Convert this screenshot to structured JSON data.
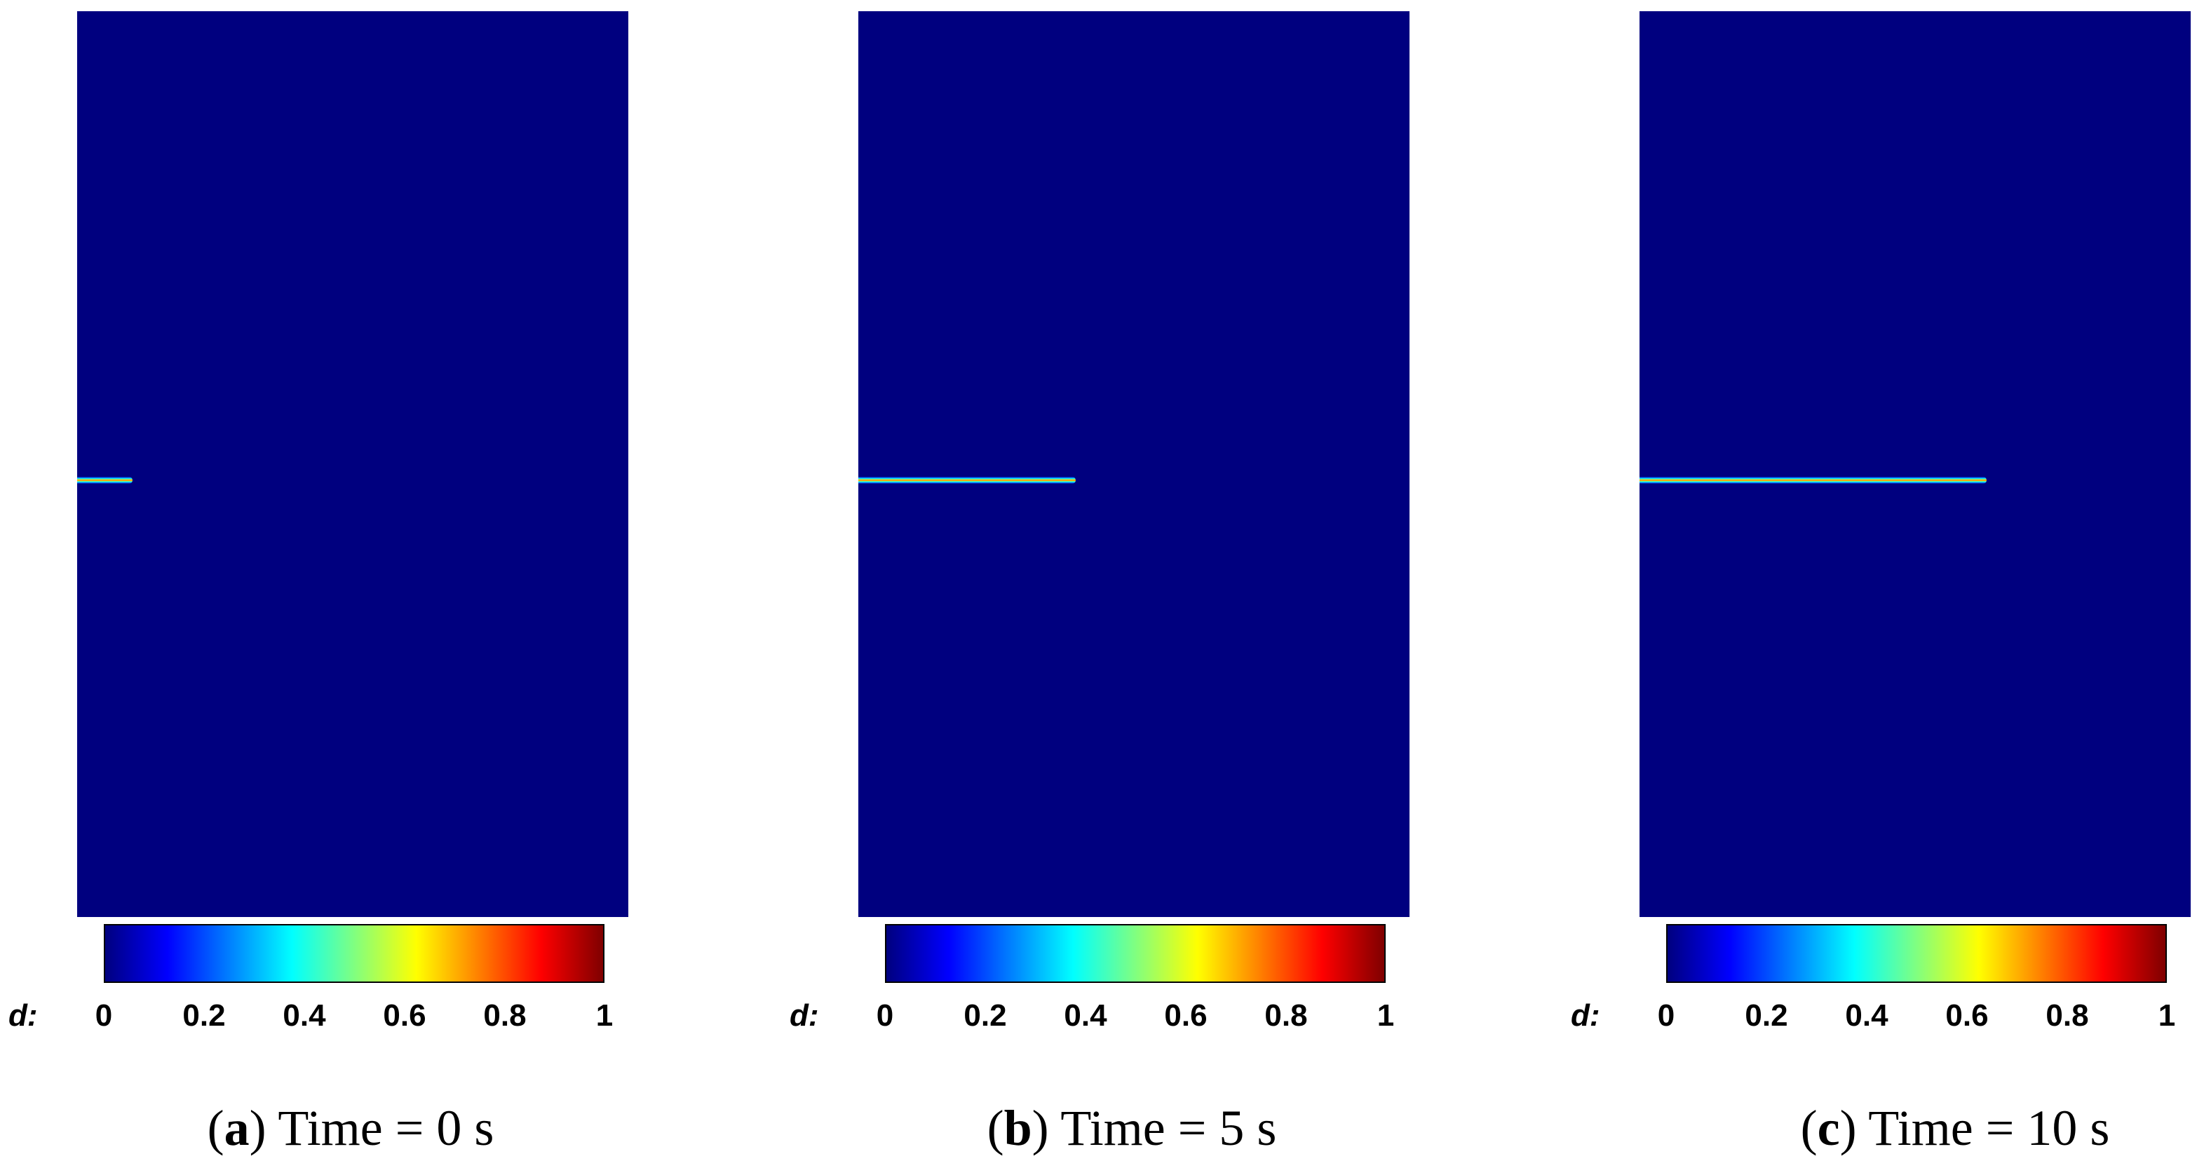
{
  "colorbar": {
    "variable_label": "d:",
    "ticks": [
      "0",
      "0.2",
      "0.4",
      "0.6",
      "0.8",
      "1"
    ],
    "colormap": [
      "#00007f",
      "#0000ff",
      "#0080ff",
      "#00ffff",
      "#80ff80",
      "#ffff00",
      "#ff8000",
      "#ff0000",
      "#7f0000"
    ]
  },
  "field_background_color": "#00007f",
  "panels": [
    {
      "letter": "a",
      "caption": "Time = 0 s",
      "crack_length_fraction": 0.1
    },
    {
      "letter": "b",
      "caption": "Time = 5 s",
      "crack_length_fraction": 0.395
    },
    {
      "letter": "c",
      "caption": "Time = 10 s",
      "crack_length_fraction": 0.63
    }
  ]
}
